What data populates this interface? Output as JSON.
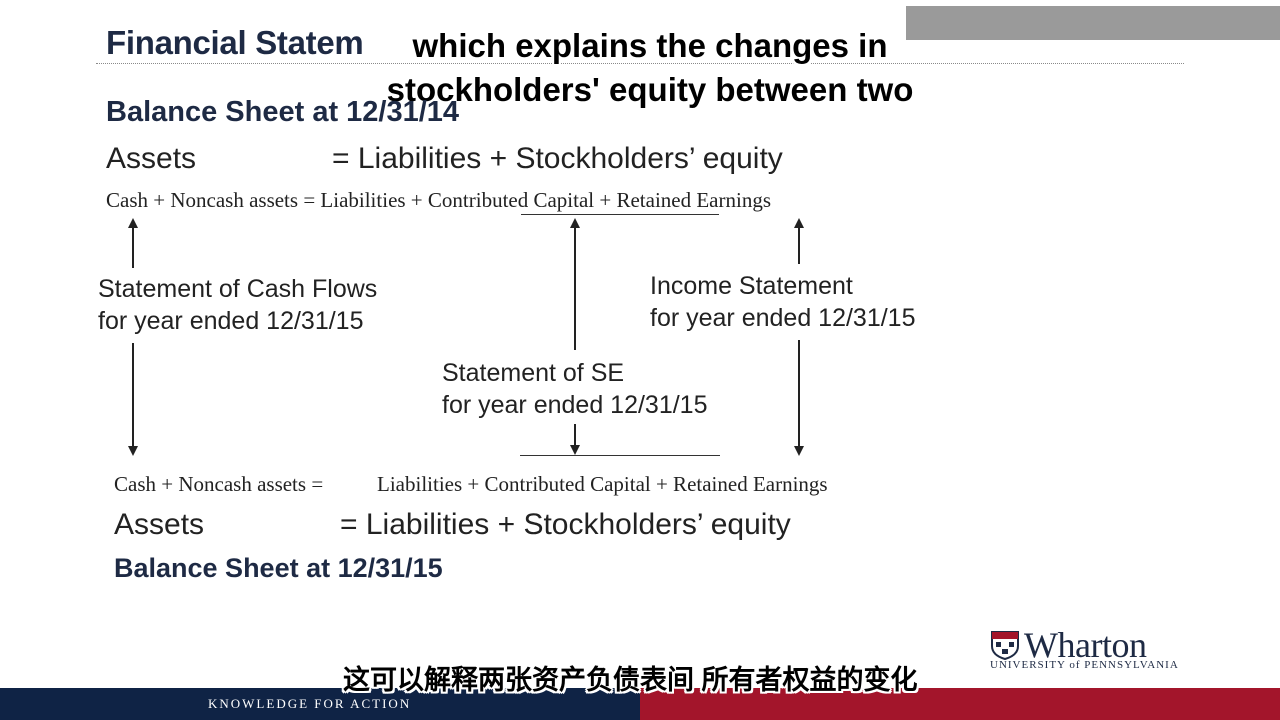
{
  "slide": {
    "title": "Financial Statem",
    "balance_sheet_top": "Balance Sheet at 12/31/14",
    "eq_top_assets": "Assets",
    "eq_top_rhs": "=  Liabilities + Stockholders’ equity",
    "eq_top_detail": "Cash + Noncash assets = Liabilities + Contributed Capital + Retained Earnings",
    "cash_flows_line1": "Statement of Cash Flows",
    "cash_flows_line2": "for year ended 12/31/15",
    "income_line1": "Income Statement",
    "income_line2": "for year ended 12/31/15",
    "se_line1": "Statement of SE",
    "se_line2": "for year ended 12/31/15",
    "eq_bottom_detail_lhs": "Cash + Noncash assets  =",
    "eq_bottom_detail_rhs": "Liabilities + Contributed Capital + Retained Earnings",
    "eq_bottom_assets": "Assets",
    "eq_bottom_rhs": "=  Liabilities + Stockholders’ equity",
    "balance_sheet_bottom": "Balance Sheet at 12/31/15"
  },
  "logo": {
    "name": "Wharton",
    "sub": "UNIVERSITY of PENNSYLVANIA"
  },
  "footer": {
    "tagline": "KNOWLEDGE FOR ACTION"
  },
  "captions": {
    "english": "which explains the changes in stockholders' equity between two",
    "chinese": "这可以解释两张资产负债表间 所有者权益的变化"
  },
  "colors": {
    "navy": "#0f2345",
    "crimson": "#a3152b",
    "title": "#1e2a44"
  }
}
